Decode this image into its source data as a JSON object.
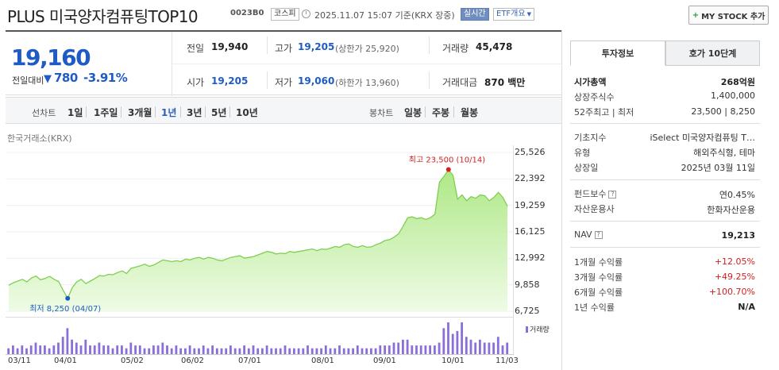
{
  "header": {
    "title": "PLUS 미국양자컴퓨팅TOP10",
    "code": "0023B0",
    "market_tag": "코스피",
    "datetime": "2025.11.07 15:07 기준(KRX 장중)",
    "realtime_tag": "실시간",
    "etf_tag": "ETF개요",
    "mystock_button": "MY STOCK 추가"
  },
  "price": {
    "current": "19,160",
    "change_label": "전일대비",
    "change_arrow": "▼",
    "change_value": "780",
    "change_pct": "-3.91%",
    "color": "#1f5bc4"
  },
  "quote": {
    "prev_label": "전일",
    "prev_value": "19,940",
    "open_label": "시가",
    "open_value": "19,205",
    "high_label": "고가",
    "high_value": "19,205",
    "high_sub": "(상한가 25,920)",
    "low_label": "저가",
    "low_value": "19,060",
    "low_sub": "(하한가 13,960)",
    "volume_label": "거래량",
    "volume_value": "45,478",
    "amount_label": "거래대금",
    "amount_value": "870 백만"
  },
  "periods": {
    "line_label": "선차트",
    "items": [
      "1일",
      "1주일",
      "3개월",
      "1년",
      "3년",
      "5년",
      "10년"
    ],
    "active": "1년",
    "candle_label": "봉차트",
    "candle_items": [
      "일봉",
      "주봉",
      "월봉"
    ]
  },
  "chart_source": "한국거래소(KRX)",
  "chart_data": {
    "type": "area",
    "yticks": [
      "25,526",
      "22,392",
      "19,259",
      "16,125",
      "12,992",
      "9,858",
      "6,725"
    ],
    "ylim": [
      6725,
      25526
    ],
    "xticks": [
      "03/11",
      "04/01",
      "05/02",
      "06/02",
      "07/01",
      "08/01",
      "09/01",
      "10/01",
      "11/03"
    ],
    "high_annotation": "최고 23,500 (10/14)",
    "low_annotation": "최저 8,250 (04/07)",
    "volume_label": "거래량",
    "line_color": "#7fcf4f",
    "fill_color": "#c9f0a8",
    "series": [
      {
        "values": [
          9800,
          10100,
          10300,
          10500,
          10200,
          10650,
          10900,
          10450,
          10600,
          10850,
          10500,
          10250,
          9200,
          8250,
          9500,
          10200,
          10500,
          10000,
          10300,
          10600,
          10950,
          10900,
          11100,
          11050,
          11300,
          11500,
          11200,
          11800,
          11950,
          12100,
          12300,
          12050,
          12200,
          12500,
          12800,
          12700,
          12600,
          12700,
          12600,
          12900,
          12800,
          13000,
          13100,
          12900,
          13100,
          13000,
          12800,
          12700,
          12900,
          13100,
          13200,
          13300,
          13000,
          13100,
          13200,
          13400,
          13600,
          13800,
          13700,
          13500,
          13600,
          13550,
          13800,
          13700,
          13800,
          13900,
          14000,
          14100,
          13900,
          14100,
          14050,
          14200,
          14400,
          14300,
          14600,
          14700,
          14400,
          14300,
          14500,
          14300,
          14350,
          14600,
          14800,
          15100,
          15200,
          15500,
          15900,
          16800,
          17800,
          17900,
          17700,
          17800,
          17600,
          17800,
          18200,
          22000,
          22700,
          23500,
          22800,
          20000,
          20500,
          19800,
          20300,
          20100,
          20500,
          20400,
          19800,
          20200,
          20800,
          20200,
          19160
        ]
      }
    ],
    "volume": [
      2,
      3,
      2,
      3,
      2,
      3,
      4,
      3,
      3,
      2,
      3,
      4,
      6,
      9,
      5,
      4,
      3,
      5,
      3,
      3,
      4,
      3,
      3,
      2,
      3,
      3,
      2,
      4,
      3,
      3,
      2,
      2,
      3,
      3,
      4,
      3,
      2,
      3,
      2,
      2,
      3,
      2,
      2,
      3,
      2,
      3,
      2,
      2,
      2,
      3,
      2,
      2,
      3,
      2,
      3,
      2,
      2,
      3,
      2,
      2,
      2,
      3,
      2,
      2,
      2,
      2,
      3,
      2,
      2,
      2,
      3,
      2,
      2,
      3,
      2,
      2,
      2,
      3,
      2,
      2,
      2,
      2,
      3,
      3,
      3,
      4,
      4,
      5,
      5,
      3,
      3,
      3,
      3,
      3,
      3,
      4,
      9,
      11,
      7,
      8,
      11,
      6,
      5,
      4,
      5,
      4,
      4,
      4,
      6,
      3,
      4
    ]
  },
  "right_panel": {
    "tabs": [
      "투자정보",
      "호가 10단계"
    ],
    "active_tab": "투자정보",
    "market_cap_label": "시가총액",
    "market_cap_value": "268억원",
    "shares_label": "상장주식수",
    "shares_value": "1,400,000",
    "range52_label": "52주최고 | 최저",
    "range52_value": "23,500 | 8,250",
    "index_label": "기초지수",
    "index_value": "iSelect 미국양자컴퓨팅 T…",
    "type_label": "유형",
    "type_value": "해외주식형, 테마",
    "listing_label": "상장일",
    "listing_value": "2025년 03월 11일",
    "fee_label": "펀드보수",
    "fee_value": "연0.45%",
    "manager_label": "자산운용사",
    "manager_value": "한화자산운용",
    "nav_label": "NAV",
    "nav_value": "19,213",
    "ret1m_label": "1개월 수익률",
    "ret1m_value": "+12.05%",
    "ret3m_label": "3개월 수익률",
    "ret3m_value": "+49.25%",
    "ret6m_label": "6개월 수익률",
    "ret6m_value": "+100.70%",
    "ret1y_label": "1년 수익률",
    "ret1y_value": "N/A",
    "help_icon": "question-icon"
  }
}
